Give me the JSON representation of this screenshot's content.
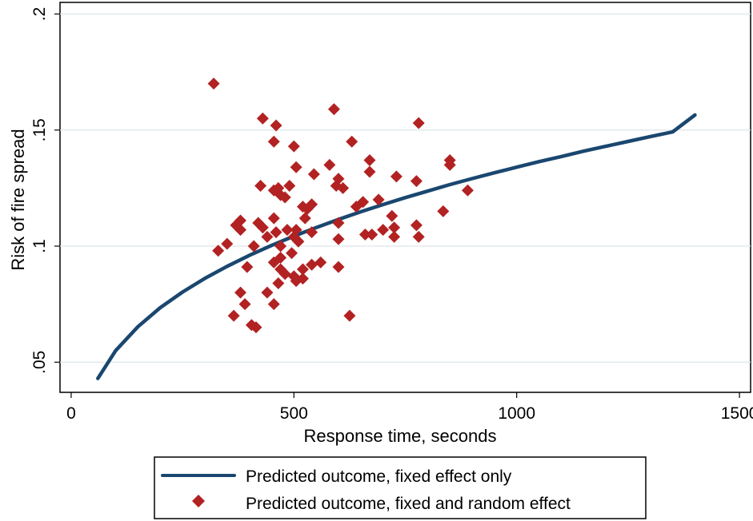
{
  "chart_data": {
    "type": "scatter",
    "xlabel": "Response time, seconds",
    "ylabel": "Risk of fire spread",
    "xlim": [
      -25,
      1525
    ],
    "ylim": [
      0.037,
      0.205
    ],
    "x_ticks": [
      0,
      500,
      1000,
      1500
    ],
    "x_tick_labels": [
      "0",
      "500",
      "1000",
      "1500"
    ],
    "y_ticks": [
      0.05,
      0.1,
      0.15,
      0.2
    ],
    "y_tick_labels": [
      ".05",
      ".1",
      ".15",
      ".2"
    ],
    "grid": true,
    "legend_position": "bottom",
    "series": [
      {
        "name": "Predicted outcome, fixed effect only",
        "kind": "line",
        "color": "#1a476f",
        "x": [
          60,
          100,
          150,
          200,
          250,
          300,
          350,
          400,
          450,
          500,
          550,
          600,
          650,
          700,
          750,
          800,
          850,
          900,
          950,
          1000,
          1050,
          1100,
          1150,
          1200,
          1250,
          1300,
          1350,
          1400
        ],
        "y": [
          0.043,
          0.055,
          0.0653,
          0.0735,
          0.0802,
          0.0861,
          0.0913,
          0.096,
          0.1003,
          0.1043,
          0.108,
          0.1115,
          0.1148,
          0.1179,
          0.1209,
          0.1237,
          0.1265,
          0.1291,
          0.1316,
          0.134,
          0.1364,
          0.1386,
          0.1409,
          0.143,
          0.1451,
          0.1472,
          0.1492,
          0.1565
        ]
      },
      {
        "name": "Predicted outcome, fixed and random effect",
        "kind": "scatter",
        "marker": "diamond",
        "color": "#b22222",
        "points": [
          [
            320,
            0.17
          ],
          [
            430,
            0.155
          ],
          [
            460,
            0.152
          ],
          [
            590,
            0.159
          ],
          [
            780,
            0.153
          ],
          [
            455,
            0.145
          ],
          [
            630,
            0.145
          ],
          [
            500,
            0.143
          ],
          [
            850,
            0.137
          ],
          [
            670,
            0.137
          ],
          [
            580,
            0.135
          ],
          [
            850,
            0.135
          ],
          [
            505,
            0.134
          ],
          [
            670,
            0.132
          ],
          [
            545,
            0.131
          ],
          [
            730,
            0.13
          ],
          [
            600,
            0.129
          ],
          [
            775,
            0.128
          ],
          [
            425,
            0.126
          ],
          [
            490,
            0.126
          ],
          [
            465,
            0.125
          ],
          [
            595,
            0.126
          ],
          [
            455,
            0.124
          ],
          [
            610,
            0.125
          ],
          [
            890,
            0.124
          ],
          [
            470,
            0.122
          ],
          [
            480,
            0.121
          ],
          [
            655,
            0.119
          ],
          [
            690,
            0.12
          ],
          [
            540,
            0.118
          ],
          [
            520,
            0.117
          ],
          [
            640,
            0.117
          ],
          [
            530,
            0.116
          ],
          [
            835,
            0.115
          ],
          [
            720,
            0.113
          ],
          [
            525,
            0.112
          ],
          [
            455,
            0.112
          ],
          [
            380,
            0.111
          ],
          [
            420,
            0.11
          ],
          [
            600,
            0.11
          ],
          [
            370,
            0.109
          ],
          [
            430,
            0.108
          ],
          [
            775,
            0.109
          ],
          [
            725,
            0.108
          ],
          [
            505,
            0.107
          ],
          [
            380,
            0.107
          ],
          [
            485,
            0.107
          ],
          [
            700,
            0.107
          ],
          [
            660,
            0.105
          ],
          [
            540,
            0.106
          ],
          [
            440,
            0.104
          ],
          [
            500,
            0.104
          ],
          [
            725,
            0.104
          ],
          [
            460,
            0.106
          ],
          [
            780,
            0.104
          ],
          [
            675,
            0.105
          ],
          [
            600,
            0.103
          ],
          [
            510,
            0.102
          ],
          [
            410,
            0.1
          ],
          [
            470,
            0.1
          ],
          [
            350,
            0.101
          ],
          [
            330,
            0.098
          ],
          [
            495,
            0.097
          ],
          [
            470,
            0.095
          ],
          [
            560,
            0.093
          ],
          [
            540,
            0.092
          ],
          [
            455,
            0.093
          ],
          [
            395,
            0.091
          ],
          [
            600,
            0.091
          ],
          [
            520,
            0.09
          ],
          [
            470,
            0.09
          ],
          [
            480,
            0.088
          ],
          [
            500,
            0.087
          ],
          [
            520,
            0.086
          ],
          [
            505,
            0.085
          ],
          [
            465,
            0.084
          ],
          [
            380,
            0.08
          ],
          [
            440,
            0.08
          ],
          [
            390,
            0.075
          ],
          [
            455,
            0.075
          ],
          [
            365,
            0.07
          ],
          [
            625,
            0.07
          ],
          [
            405,
            0.066
          ],
          [
            415,
            0.065
          ]
        ]
      }
    ]
  }
}
